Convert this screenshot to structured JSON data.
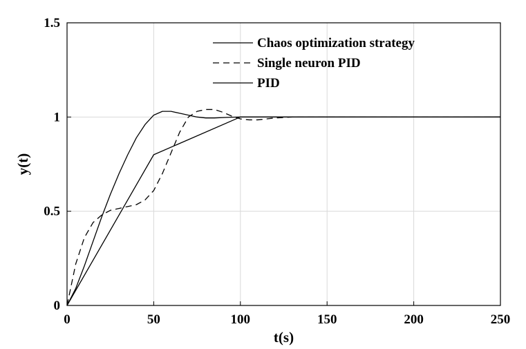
{
  "chart_data": {
    "type": "line",
    "title": "",
    "xlabel": "t(s)",
    "ylabel": "y(t)",
    "xlim": [
      0,
      250
    ],
    "ylim": [
      0,
      1.5
    ],
    "xticks": [
      0,
      50,
      100,
      150,
      200,
      250
    ],
    "yticks": [
      0,
      0.5,
      1,
      1.5
    ],
    "xtick_labels": [
      "0",
      "50",
      "100",
      "150",
      "200",
      "250"
    ],
    "ytick_labels": [
      "0",
      "0.5",
      "1",
      "1.5"
    ],
    "grid": true,
    "legend_position": "top-right",
    "series": [
      {
        "name": "Chaos optimization strategy",
        "line_style": "solid",
        "color": "#000000",
        "x": [
          0,
          5,
          10,
          15,
          20,
          25,
          30,
          35,
          40,
          45,
          50,
          55,
          60,
          65,
          70,
          75,
          80,
          85,
          90,
          95,
          100,
          110,
          120,
          130,
          140,
          150,
          175,
          200,
          225,
          250
        ],
        "y": [
          0,
          0.09,
          0.21,
          0.34,
          0.47,
          0.59,
          0.7,
          0.8,
          0.89,
          0.96,
          1.01,
          1.03,
          1.03,
          1.02,
          1.01,
          1.0,
          0.995,
          0.995,
          0.997,
          0.999,
          1.0,
          1.0,
          1.0,
          1.0,
          1.0,
          1.0,
          1.0,
          1.0,
          1.0,
          1.0
        ]
      },
      {
        "name": "Single neuron PID",
        "line_style": "dashed",
        "color": "#000000",
        "x": [
          0,
          5,
          10,
          15,
          20,
          25,
          30,
          35,
          40,
          45,
          50,
          55,
          60,
          65,
          70,
          75,
          80,
          85,
          90,
          95,
          100,
          105,
          110,
          115,
          120,
          130,
          140,
          150,
          175,
          200,
          225,
          250
        ],
        "y": [
          0,
          0.22,
          0.36,
          0.44,
          0.48,
          0.505,
          0.515,
          0.525,
          0.535,
          0.56,
          0.61,
          0.7,
          0.81,
          0.92,
          1.0,
          1.03,
          1.04,
          1.04,
          1.025,
          1.005,
          0.99,
          0.985,
          0.985,
          0.99,
          0.995,
          1.0,
          1.0,
          1.0,
          1.0,
          1.0,
          1.0,
          1.0
        ]
      },
      {
        "name": "PID",
        "line_style": "solid",
        "color": "#000000",
        "x": [
          0,
          50,
          100,
          150,
          200,
          250
        ],
        "y": [
          0,
          0.8,
          1.0,
          1.0,
          1.0,
          1.0
        ]
      }
    ]
  }
}
